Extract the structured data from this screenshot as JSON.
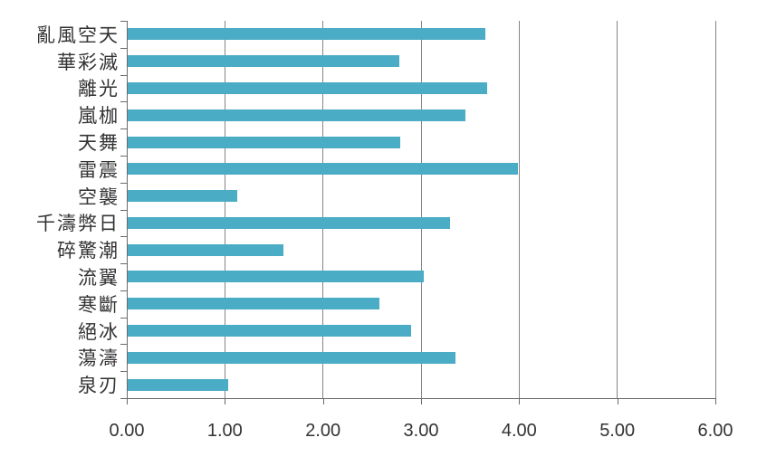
{
  "chart_data": {
    "type": "bar",
    "orientation": "horizontal",
    "title": "",
    "categories": [
      "亂風空天",
      "華彩滅",
      "離光",
      "嵐枷",
      "天舞",
      "雷震",
      "空襲",
      "千濤弊日",
      "碎驚潮",
      "流翼",
      "寒斷",
      "絕冰",
      "蕩濤",
      "泉刃"
    ],
    "values": [
      3.65,
      2.77,
      3.66,
      3.44,
      2.78,
      3.98,
      1.12,
      3.29,
      1.59,
      3.02,
      2.57,
      2.89,
      3.34,
      1.02
    ],
    "xlim": [
      0,
      6
    ],
    "x_ticks": [
      0,
      1,
      2,
      3,
      4,
      5,
      6
    ],
    "x_tick_labels": [
      "0.00",
      "1.00",
      "2.00",
      "3.00",
      "4.00",
      "5.00",
      "6.00"
    ],
    "grid": true,
    "legend": false,
    "colors": {
      "bar": "#4BACC6",
      "gridline": "#858585",
      "axis": "#6a6a6a",
      "text": "#333333",
      "background": "#FFFFFF"
    }
  }
}
